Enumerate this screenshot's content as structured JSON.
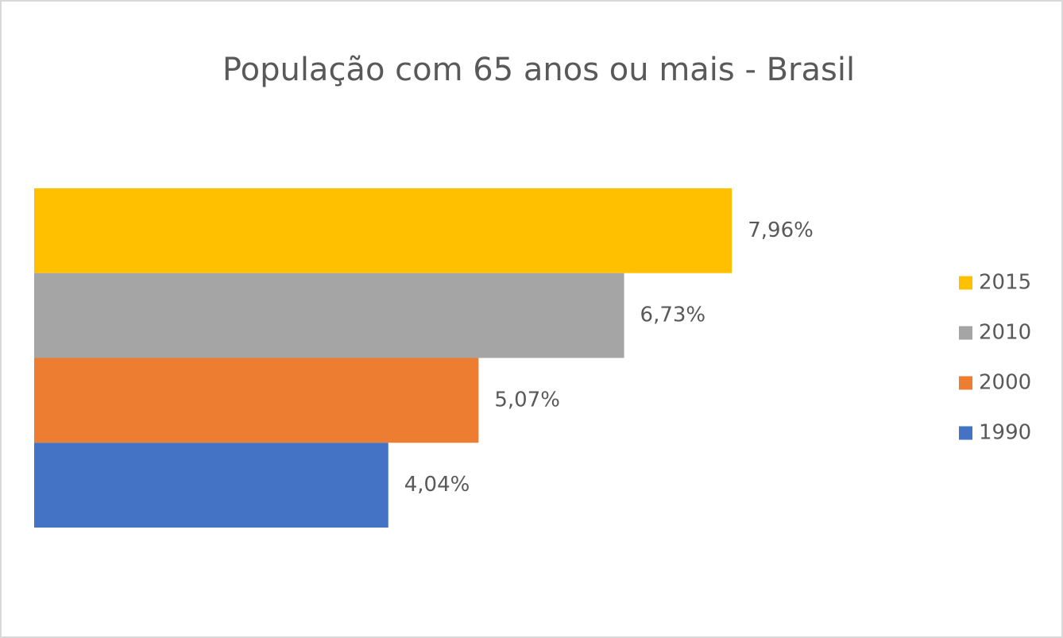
{
  "chart_data": {
    "type": "bar",
    "orientation": "horizontal",
    "title": "População com 65 anos ou mais - Brasil",
    "categories": [
      null
    ],
    "series": [
      {
        "name": "2015",
        "color": "#ffc000",
        "values": [
          7.96
        ],
        "value_labels": [
          "7,96%"
        ]
      },
      {
        "name": "2010",
        "color": "#a5a5a5",
        "values": [
          6.73
        ],
        "value_labels": [
          "6,73%"
        ]
      },
      {
        "name": "2000",
        "color": "#ed7d31",
        "values": [
          5.07
        ],
        "value_labels": [
          "5,07%"
        ]
      },
      {
        "name": "1990",
        "color": "#4472c4",
        "values": [
          4.04
        ],
        "value_labels": [
          "4,04%"
        ]
      }
    ],
    "xlim": [
      0,
      9
    ],
    "legend": "right"
  }
}
